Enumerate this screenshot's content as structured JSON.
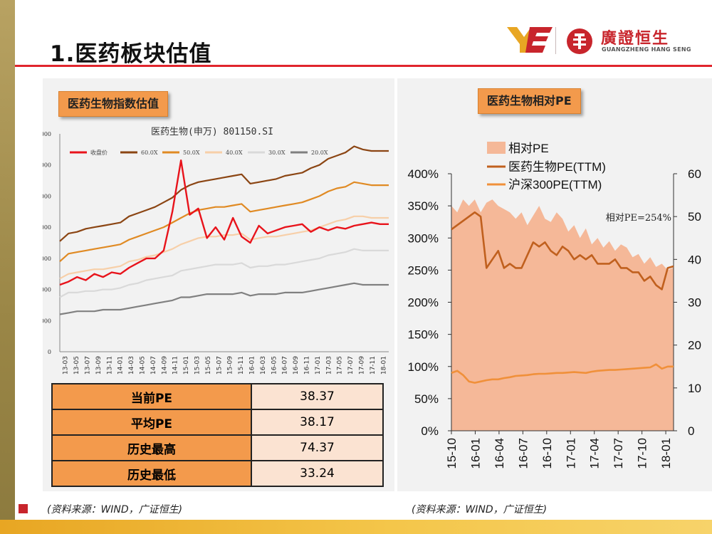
{
  "slide": {
    "title": "1.医药板块估值",
    "source_left": "(资料来源：WIND，广证恒生)",
    "source_right": "(资料来源：WIND，广证恒生)"
  },
  "brand": {
    "name_cn": "廣證恒生",
    "name_en": "GUANGZHENG HANG SENG",
    "colors": {
      "red": "#c8252c",
      "orange": "#f39a4c",
      "gold": "#e8a623"
    }
  },
  "left_chart_label": "医药生物指数估值",
  "right_chart_label": "医药生物相对PE",
  "pe_table": [
    {
      "label": "当前PE",
      "value": "38.37"
    },
    {
      "label": "平均PE",
      "value": "38.17"
    },
    {
      "label": "历史最高",
      "value": "74.37"
    },
    {
      "label": "历史最低",
      "value": "33.24"
    }
  ],
  "chart_data": [
    {
      "type": "line",
      "title": "医药生物(申万) 801150.SI",
      "ylim": [
        0,
        14000
      ],
      "y_ticks": [
        "0",
        "2000",
        "4000",
        "6000",
        "8000",
        "10000",
        "12000",
        "14000"
      ],
      "x_ticks": [
        "13-03",
        "13-05",
        "13-07",
        "13-09",
        "13-11",
        "14-01",
        "14-03",
        "14-05",
        "14-07",
        "14-09",
        "14-11",
        "15-01",
        "15-03",
        "15-05",
        "15-07",
        "15-09",
        "15-11",
        "16-01",
        "16-03",
        "16-05",
        "16-07",
        "16-09",
        "16-11",
        "17-01",
        "17-03",
        "17-05",
        "17-07",
        "17-09",
        "17-11",
        "18-01"
      ],
      "legend_position": "top",
      "series": [
        {
          "name": "收盘价",
          "color": "#e8131b",
          "values": [
            4300,
            4500,
            4800,
            4600,
            5000,
            4800,
            5100,
            5000,
            5400,
            5700,
            6000,
            6000,
            6500,
            9000,
            12300,
            8800,
            9200,
            7300,
            8000,
            7200,
            8600,
            7400,
            7000,
            8100,
            7600,
            7800,
            8000,
            8100,
            8200,
            7700,
            8000,
            7800,
            8000,
            7900,
            8100,
            8200,
            8300,
            8200,
            8200
          ]
        },
        {
          "name": "60.0X",
          "color": "#8b4513",
          "values": [
            7100,
            7600,
            7700,
            7900,
            8000,
            8100,
            8200,
            8300,
            8700,
            8900,
            9100,
            9300,
            9600,
            9900,
            10400,
            10700,
            10900,
            11000,
            11100,
            11200,
            11300,
            11400,
            10800,
            10900,
            11000,
            11100,
            11300,
            11400,
            11500,
            11800,
            12000,
            12400,
            12600,
            12800,
            13200,
            13000,
            12900,
            12900,
            12900
          ]
        },
        {
          "name": "50.0X",
          "color": "#e08a23",
          "values": [
            5800,
            6300,
            6400,
            6500,
            6600,
            6700,
            6800,
            6900,
            7200,
            7400,
            7600,
            7800,
            8000,
            8300,
            8600,
            8900,
            9100,
            9200,
            9300,
            9300,
            9400,
            9500,
            9000,
            9100,
            9200,
            9300,
            9400,
            9500,
            9600,
            9800,
            10000,
            10300,
            10500,
            10600,
            10900,
            10800,
            10700,
            10700,
            10700
          ]
        },
        {
          "name": "40.0X",
          "color": "#f7cfa8",
          "values": [
            4700,
            5000,
            5100,
            5200,
            5300,
            5300,
            5400,
            5500,
            5800,
            5900,
            6100,
            6200,
            6400,
            6600,
            6900,
            7100,
            7300,
            7400,
            7400,
            7500,
            7500,
            7600,
            7200,
            7300,
            7400,
            7400,
            7500,
            7600,
            7700,
            7800,
            8000,
            8200,
            8400,
            8500,
            8700,
            8700,
            8600,
            8600,
            8600
          ]
        },
        {
          "name": "30.0X",
          "color": "#d9d9d9",
          "values": [
            3500,
            3800,
            3800,
            3900,
            3900,
            4000,
            4000,
            4100,
            4300,
            4400,
            4600,
            4700,
            4800,
            4900,
            5200,
            5300,
            5400,
            5500,
            5600,
            5600,
            5600,
            5700,
            5400,
            5500,
            5500,
            5600,
            5600,
            5700,
            5800,
            5900,
            6000,
            6200,
            6300,
            6400,
            6600,
            6500,
            6500,
            6500,
            6500
          ]
        },
        {
          "name": "20.0X",
          "color": "#808080",
          "values": [
            2400,
            2500,
            2600,
            2600,
            2600,
            2700,
            2700,
            2700,
            2800,
            2900,
            3000,
            3100,
            3200,
            3300,
            3500,
            3500,
            3600,
            3700,
            3700,
            3700,
            3700,
            3800,
            3600,
            3700,
            3700,
            3700,
            3800,
            3800,
            3800,
            3900,
            4000,
            4100,
            4200,
            4300,
            4400,
            4300,
            4300,
            4300,
            4300
          ]
        }
      ]
    },
    {
      "type": "area",
      "ylim_left": [
        0,
        4
      ],
      "ylim_right": [
        0,
        60
      ],
      "y_ticks_left": [
        "0%",
        "50%",
        "100%",
        "150%",
        "200%",
        "250%",
        "300%",
        "350%",
        "400%"
      ],
      "y_ticks_right": [
        "0",
        "10",
        "20",
        "30",
        "40",
        "50",
        "60"
      ],
      "x_ticks": [
        "15-10",
        "16-01",
        "16-04",
        "16-07",
        "16-10",
        "17-01",
        "17-04",
        "17-07",
        "17-10",
        "18-01"
      ],
      "legend_position": "top-left",
      "annotation": "相对PE=254%",
      "series": [
        {
          "name": "相对PE",
          "axis": "left",
          "color": "#f5b898",
          "values": [
            3.5,
            3.4,
            3.6,
            3.5,
            3.6,
            3.4,
            3.55,
            3.6,
            3.5,
            3.45,
            3.4,
            3.3,
            3.4,
            3.2,
            3.35,
            3.5,
            3.3,
            3.25,
            3.4,
            3.3,
            3.1,
            3.2,
            3.0,
            3.15,
            2.9,
            3.0,
            2.85,
            2.95,
            2.8,
            2.9,
            2.85,
            2.7,
            2.75,
            2.6,
            2.7,
            2.55,
            2.6,
            2.5,
            2.54
          ]
        },
        {
          "name": "医药生物PE(TTM)",
          "axis": "right",
          "color": "#c0601e",
          "values": [
            47,
            48,
            49,
            50,
            51,
            50,
            38,
            40,
            42,
            38,
            39,
            38,
            38,
            41,
            44,
            43,
            44,
            42,
            41,
            43,
            42,
            40,
            41,
            40,
            41,
            39,
            39,
            39,
            40,
            38,
            38,
            37,
            37,
            35,
            36,
            34,
            33,
            38,
            38.4
          ]
        },
        {
          "name": "沪深300PE(TTM)",
          "axis": "right",
          "color": "#f0903a",
          "values": [
            13.5,
            14,
            13,
            11.5,
            11.2,
            11.5,
            11.8,
            12,
            12,
            12.3,
            12.5,
            12.8,
            12.9,
            13,
            13.2,
            13.3,
            13.3,
            13.4,
            13.5,
            13.5,
            13.6,
            13.7,
            13.6,
            13.5,
            13.8,
            14,
            14.1,
            14.2,
            14.2,
            14.3,
            14.4,
            14.5,
            14.6,
            14.7,
            14.8,
            15.5,
            14.5,
            15,
            15
          ]
        }
      ]
    }
  ]
}
